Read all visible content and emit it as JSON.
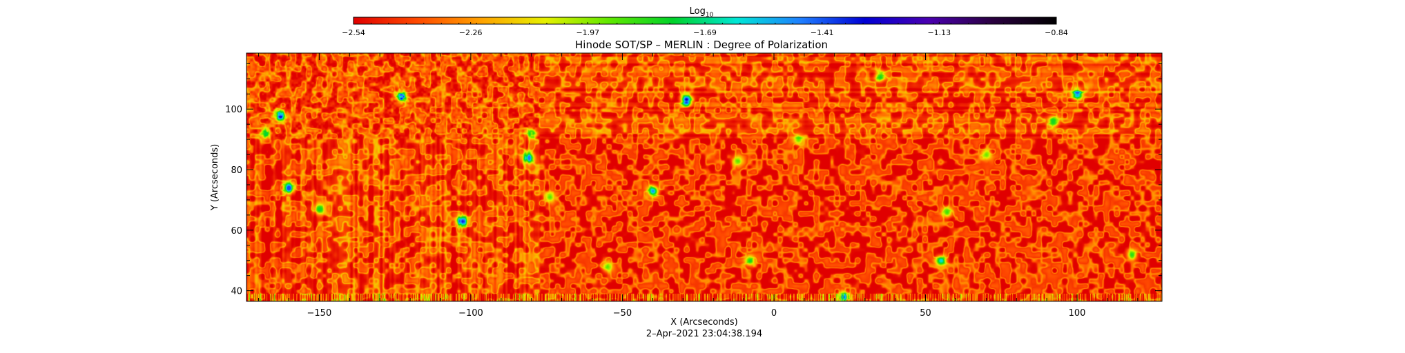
{
  "chart_data": {
    "type": "heatmap",
    "title": "Hinode SOT/SP – MERLIN : Degree of Polarization",
    "xlabel": "X (Arcseconds)",
    "ylabel": "Y (Arcseconds)",
    "xlim": [
      -174,
      128
    ],
    "ylim": [
      36.5,
      118.5
    ],
    "x_ticks": [
      -150,
      -100,
      -50,
      0,
      50,
      100
    ],
    "x_tick_labels": [
      "−150",
      "−100",
      "−50",
      "0",
      "50",
      "100"
    ],
    "y_ticks": [
      40,
      60,
      80,
      100
    ],
    "y_tick_labels": [
      "40",
      "60",
      "80",
      "100"
    ],
    "x_minor_step": 10,
    "y_minor_step": 5,
    "timestamp": "2–Apr–2021 23:04:38.194",
    "colorbar": {
      "label_base": "Log",
      "label_sub": "10",
      "min": -2.54,
      "max": -0.84,
      "tick_labels": [
        "−2.54",
        "−2.26",
        "−1.97",
        "−1.69",
        "−1.41",
        "−1.13",
        "−0.84"
      ],
      "colormap": [
        "#e00000",
        "#ff4a00",
        "#ffa200",
        "#e6f000",
        "#60e800",
        "#00d22a",
        "#00e6d6",
        "#1f7fff",
        "#0000d4",
        "#4a00b0",
        "#2a0040",
        "#000000"
      ]
    },
    "map": {
      "background_level": -2.44,
      "regions": [
        {
          "x": -163,
          "y": 98,
          "value": -1.33
        },
        {
          "x": -160,
          "y": 74,
          "value": -1.4
        },
        {
          "x": -123,
          "y": 104,
          "value": -1.35
        },
        {
          "x": -103,
          "y": 63,
          "value": -1.3
        },
        {
          "x": -81,
          "y": 84,
          "value": -1.45
        },
        {
          "x": -40,
          "y": 73,
          "value": -1.3
        },
        {
          "x": -29,
          "y": 103,
          "value": -1.17
        },
        {
          "x": 55,
          "y": 50,
          "value": -1.45
        },
        {
          "x": 100,
          "y": 105,
          "value": -1.42
        },
        {
          "x": -168,
          "y": 92,
          "value": -1.75
        },
        {
          "x": -150,
          "y": 67,
          "value": -1.8
        },
        {
          "x": -80,
          "y": 92,
          "value": -1.78
        },
        {
          "x": -74,
          "y": 71,
          "value": -1.82
        },
        {
          "x": -12,
          "y": 83,
          "value": -1.85
        },
        {
          "x": 8,
          "y": 90,
          "value": -1.85
        },
        {
          "x": 35,
          "y": 111,
          "value": -1.8
        },
        {
          "x": 57,
          "y": 66,
          "value": -1.75
        },
        {
          "x": 70,
          "y": 85,
          "value": -1.85
        },
        {
          "x": 92,
          "y": 96,
          "value": -1.8
        },
        {
          "x": 118,
          "y": 52,
          "value": -1.75
        },
        {
          "x": -8,
          "y": 50,
          "value": -1.7
        },
        {
          "x": -55,
          "y": 48,
          "value": -1.85
        },
        {
          "x": 23,
          "y": 38,
          "value": -1.4
        }
      ]
    }
  }
}
